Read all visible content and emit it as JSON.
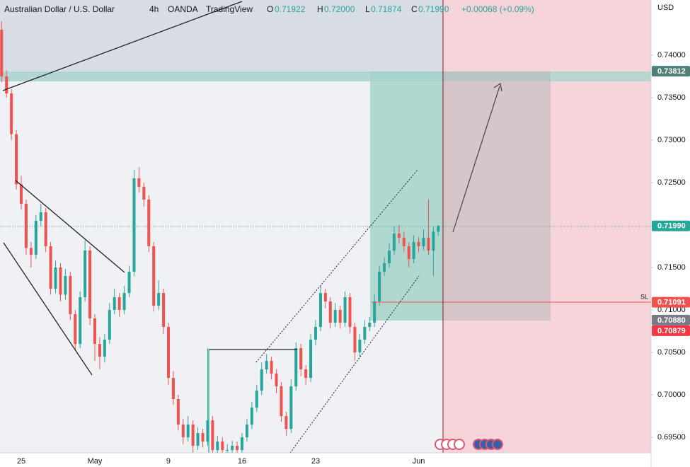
{
  "header": {
    "symbol": "Australian Dollar / U.S. Dollar",
    "interval": "4h",
    "exchange": "OANDA",
    "source": "TradingView",
    "quote": [
      {
        "key": "O",
        "value": "0.71922"
      },
      {
        "key": "H",
        "value": "0.72000"
      },
      {
        "key": "L",
        "value": "0.71874"
      },
      {
        "key": "C",
        "value": "0.71990"
      }
    ],
    "change": "+0.00068 (+0.09%)"
  },
  "currency": "USD",
  "sl_label": "SL",
  "chart_data": {
    "type": "candlestick",
    "up_color": "#26a69a",
    "down_color": "#ef5350",
    "categories": [
      null,
      null,
      null,
      null,
      "25",
      null,
      null,
      null,
      null,
      null,
      null,
      null,
      null,
      null,
      null,
      null,
      null,
      null,
      null,
      "May",
      null,
      null,
      null,
      null,
      null,
      null,
      null,
      null,
      null,
      null,
      null,
      null,
      null,
      null,
      "9",
      null,
      null,
      null,
      null,
      null,
      null,
      null,
      null,
      null,
      null,
      null,
      null,
      null,
      null,
      "16",
      null,
      null,
      null,
      null,
      null,
      null,
      null,
      null,
      null,
      null,
      null,
      null,
      null,
      null,
      "23",
      null,
      null,
      null,
      null,
      null,
      null,
      null,
      null,
      null,
      null,
      null,
      null,
      null,
      null,
      null,
      null,
      null,
      null,
      null,
      null,
      "Jun",
      null,
      null,
      null,
      null
    ],
    "open": [
      0.743,
      0.7375,
      0.7355,
      0.7307,
      0.7248,
      0.7225,
      0.7173,
      0.7165,
      0.7205,
      0.7215,
      0.7175,
      0.7125,
      0.715,
      0.7118,
      0.714,
      0.7095,
      0.706,
      0.7115,
      0.717,
      0.709,
      0.706,
      0.7045,
      0.7065,
      0.71,
      0.7115,
      0.71,
      0.712,
      0.7145,
      0.7255,
      0.7245,
      0.723,
      0.7175,
      0.7105,
      0.712,
      0.708,
      0.702,
      0.6995,
      0.6965,
      0.695,
      0.6965,
      0.694,
      0.6955,
      0.6945,
      0.697,
      0.6935,
      0.6945,
      0.6935,
      0.6935,
      0.694,
      0.6935,
      0.695,
      0.6965,
      0.6985,
      0.7005,
      0.703,
      0.704,
      0.7025,
      0.701,
      0.6975,
      0.696,
      0.701,
      0.7055,
      0.703,
      0.702,
      0.7065,
      0.708,
      0.712,
      0.711,
      0.7085,
      0.71,
      0.7085,
      0.7115,
      0.708,
      0.705,
      0.7065,
      0.708,
      0.7085,
      0.711,
      0.7145,
      0.7155,
      0.717,
      0.719,
      0.7185,
      0.7175,
      0.716,
      0.718,
      0.7175,
      0.7185,
      0.717,
      0.71922
    ],
    "high": [
      0.744,
      0.7382,
      0.736,
      0.7312,
      0.7258,
      0.723,
      0.718,
      0.7212,
      0.7225,
      0.722,
      0.718,
      0.7158,
      0.7155,
      0.7148,
      0.7145,
      0.71,
      0.7122,
      0.7182,
      0.7175,
      0.7095,
      0.7068,
      0.7072,
      0.7108,
      0.7125,
      0.712,
      0.7128,
      0.7152,
      0.7265,
      0.7268,
      0.725,
      0.7235,
      0.718,
      0.7135,
      0.7125,
      0.7085,
      0.7028,
      0.7,
      0.6972,
      0.6975,
      0.697,
      0.6962,
      0.696,
      0.7055,
      0.6975,
      0.6952,
      0.695,
      0.6942,
      0.6946,
      0.6945,
      0.6955,
      0.6972,
      0.6992,
      0.7012,
      0.7038,
      0.7048,
      0.7045,
      0.703,
      0.7015,
      0.698,
      0.7018,
      0.7062,
      0.706,
      0.7035,
      0.7072,
      0.7088,
      0.7128,
      0.7125,
      0.7115,
      0.7108,
      0.7105,
      0.7122,
      0.712,
      0.7085,
      0.7072,
      0.7088,
      0.7092,
      0.7118,
      0.7152,
      0.7162,
      0.7178,
      0.7198,
      0.72,
      0.7192,
      0.718,
      0.7188,
      0.7186,
      0.7195,
      0.723,
      0.7198,
      0.72
    ],
    "low": [
      0.7368,
      0.735,
      0.73,
      0.7242,
      0.7218,
      0.7165,
      0.715,
      0.716,
      0.7198,
      0.7168,
      0.7118,
      0.712,
      0.711,
      0.7112,
      0.7088,
      0.7052,
      0.7055,
      0.711,
      0.7082,
      0.704,
      0.703,
      0.7038,
      0.706,
      0.7095,
      0.7092,
      0.7095,
      0.7115,
      0.714,
      0.7238,
      0.7222,
      0.7168,
      0.7098,
      0.71,
      0.7072,
      0.7012,
      0.6988,
      0.6958,
      0.6942,
      0.6945,
      0.6932,
      0.6935,
      0.6938,
      0.694,
      0.6928,
      0.6928,
      0.6926,
      0.6928,
      0.693,
      0.6928,
      0.693,
      0.6945,
      0.696,
      0.698,
      0.7,
      0.7025,
      0.7018,
      0.7002,
      0.6968,
      0.6952,
      0.6955,
      0.7005,
      0.7022,
      0.7012,
      0.7015,
      0.7058,
      0.7075,
      0.7102,
      0.7078,
      0.708,
      0.7078,
      0.708,
      0.7072,
      0.704,
      0.7045,
      0.706,
      0.7075,
      0.708,
      0.7105,
      0.714,
      0.715,
      0.7165,
      0.7178,
      0.7168,
      0.715,
      0.7155,
      0.7168,
      0.717,
      0.7165,
      0.714,
      0.71874
    ],
    "close": [
      0.7375,
      0.7355,
      0.7307,
      0.7248,
      0.7225,
      0.7173,
      0.7165,
      0.7205,
      0.7215,
      0.7175,
      0.7125,
      0.715,
      0.7118,
      0.714,
      0.7095,
      0.706,
      0.7115,
      0.717,
      0.709,
      0.706,
      0.7045,
      0.7065,
      0.71,
      0.7115,
      0.71,
      0.712,
      0.7145,
      0.7255,
      0.7245,
      0.723,
      0.7175,
      0.7105,
      0.712,
      0.708,
      0.702,
      0.6995,
      0.6965,
      0.695,
      0.6965,
      0.694,
      0.6955,
      0.6945,
      0.697,
      0.6935,
      0.6945,
      0.6935,
      0.6935,
      0.694,
      0.6935,
      0.695,
      0.6965,
      0.6985,
      0.7005,
      0.703,
      0.704,
      0.7025,
      0.701,
      0.6975,
      0.696,
      0.701,
      0.7055,
      0.703,
      0.702,
      0.7065,
      0.708,
      0.712,
      0.711,
      0.7085,
      0.71,
      0.7085,
      0.7115,
      0.708,
      0.705,
      0.7065,
      0.708,
      0.7085,
      0.711,
      0.7145,
      0.7155,
      0.717,
      0.719,
      0.7185,
      0.7175,
      0.716,
      0.718,
      0.7175,
      0.7185,
      0.717,
      0.71922,
      0.7199
    ],
    "ylim": [
      0.69317,
      0.7465
    ],
    "yticks": [
      {
        "value": 0.74,
        "label": "0.74000"
      },
      {
        "value": 0.735,
        "label": "0.73500"
      },
      {
        "value": 0.73,
        "label": "0.73000"
      },
      {
        "value": 0.725,
        "label": "0.72500"
      },
      {
        "value": 0.72,
        "label": "0.72000"
      },
      {
        "value": 0.715,
        "label": "0.71500"
      },
      {
        "value": 0.71,
        "label": "0.71000"
      },
      {
        "value": 0.705,
        "label": "0.70500"
      },
      {
        "value": 0.7,
        "label": "0.70000"
      },
      {
        "value": 0.695,
        "label": "0.69500"
      }
    ],
    "price_tags": [
      {
        "value": 0.73812,
        "label": "0.73812",
        "color": "#4e7f78"
      },
      {
        "value": 0.7199,
        "label": "0.71990",
        "color": "#26a69a"
      },
      {
        "value": 0.71091,
        "label": "0.71091",
        "color": "#ef5350"
      },
      {
        "value": 0.7088,
        "label": "0.70880",
        "color": "#787b86"
      },
      {
        "value": 0.70879,
        "label": "0.70879",
        "color": "#f23645"
      }
    ]
  }
}
